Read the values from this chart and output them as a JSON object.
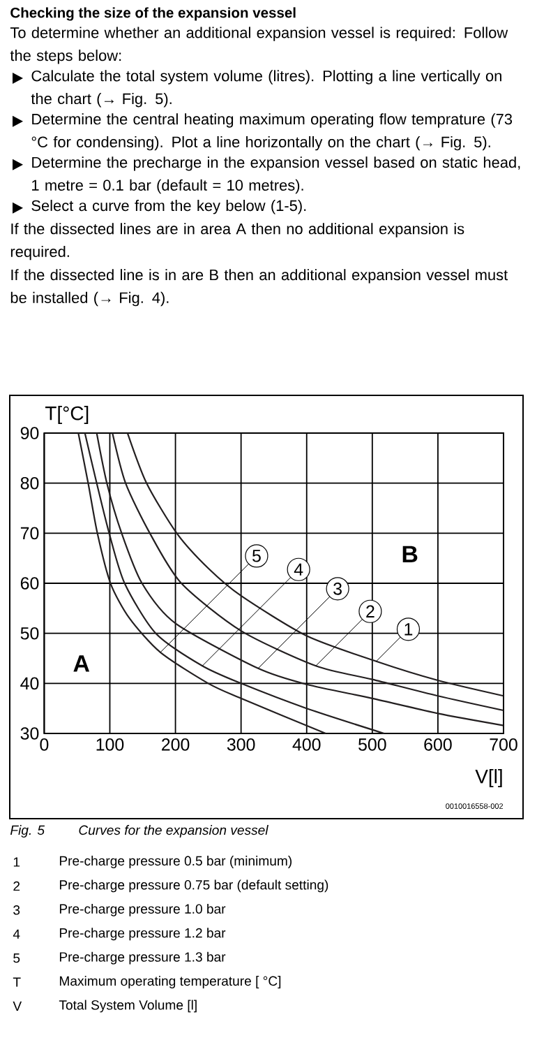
{
  "chart_data": {
    "type": "line",
    "title": "Checking the size of the expansion vessel",
    "subtitle": "To determine whether an additional expansion vessel is required: Follow the steps below:",
    "xlabel": "V[l]",
    "ylabel": "T[°C]",
    "xlim": [
      0,
      700
    ],
    "ylim": [
      30,
      90
    ],
    "xticks": [
      0,
      100,
      200,
      300,
      400,
      500,
      600,
      700
    ],
    "yticks": [
      30,
      40,
      50,
      60,
      70,
      80,
      90
    ],
    "grid": true,
    "marker": "none",
    "line_style": "solid",
    "series": [
      {
        "color": "#231f20",
        "x": [
          127,
          156,
          202,
          250,
          300,
          400,
          506,
          600,
          700
        ],
        "values": [
          90,
          80,
          70,
          63,
          57.5,
          49.5,
          44.4,
          40.6,
          37.5
        ]
      },
      {
        "color": "#231f20",
        "x": [
          104,
          124,
          161,
          209,
          300,
          414,
          500,
          600,
          700
        ],
        "values": [
          90,
          80,
          70,
          60,
          50.5,
          43.5,
          40.8,
          37.5,
          34.6
        ]
      },
      {
        "color": "#231f20",
        "x": [
          80,
          95.5,
          118,
          149,
          200,
          326,
          400,
          500,
          600,
          700
        ],
        "values": [
          90,
          80,
          70,
          60,
          52,
          43,
          39.8,
          37,
          34,
          31.6
        ]
      },
      {
        "color": "#231f20",
        "x": [
          62,
          80,
          99,
          122.5,
          170,
          241,
          300,
          400,
          518
        ],
        "values": [
          90,
          80,
          70,
          60,
          50,
          43.5,
          40,
          35,
          30
        ]
      },
      {
        "color": "#231f20",
        "x": [
          52,
          67,
          81,
          101,
          130,
          177,
          250,
          300,
          429
        ],
        "values": [
          90,
          80,
          70,
          60,
          53,
          46.2,
          40,
          37,
          30
        ]
      }
    ],
    "annotations": [
      "Calculate the total system volume (litres). Plotting a line vertically on the chart (→ Fig. 5).",
      "Determine the central heating maximum operating flow temprature (73 °C for condensing). Plot a line horizontally on the chart (→ Fig. 5).",
      "Determine the precharge in the expansion vessel based on static head, 1 metre = 0.1 bar (default = 10 metres).",
      "Select a curve from the key below (1-5).",
      "If the dissected lines are in area A then no additional expansion is required.",
      "If the dissected line is in are B then an additional expansion vessel must be installed (→ Fig. 4).",
      "A",
      "B",
      {
        "text": "5",
        "x": 177,
        "y": 46.2
      },
      {
        "text": "4",
        "x": 241,
        "y": 43.5
      },
      {
        "text": "3",
        "x": 326,
        "y": 43
      },
      {
        "text": "2",
        "x": 414,
        "y": 43.5
      },
      {
        "text": "1",
        "x": 506,
        "y": 44.4
      },
      "0010016558-002",
      "Fig. 5",
      "Curves for the expansion vessel",
      "1",
      "Pre-charge pressure 0.5 bar (minimum)",
      "2",
      "Pre-charge pressure 0.75 bar (default setting)",
      "3",
      "Pre-charge pressure 1.0 bar",
      "4",
      "Pre-charge pressure 1.2 bar",
      "5",
      "Pre-charge pressure 1.3 bar",
      "T",
      "Maximum operating temperature [ °C]",
      "V",
      "Total System Volume [l]"
    ]
  }
}
